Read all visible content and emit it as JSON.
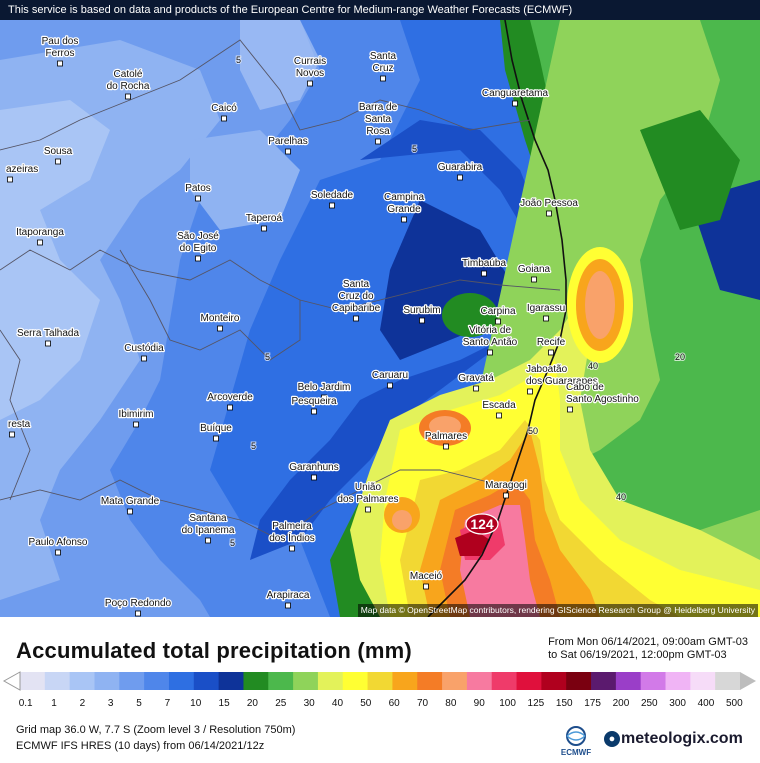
{
  "notice": "This service is based on data and products of the European Centre for Medium-range Weather Forecasts (ECMWF)",
  "attribution": "Map data © OpenStreetMap contributors, rendering GIScience Research Group @ Heidelberg University",
  "title": "Accumulated total precipitation (mm)",
  "from_line": "From Mon 06/14/2021, 09:00am GMT-03",
  "to_line": "to Sat 06/19/2021, 12:00pm GMT-03",
  "grid_info": "Grid map 36.0 W, 7.7 S (Zoom level 3 / Resolution 750m)",
  "model_info": "ECMWF IFS HRES (10 days) from 06/14/2021/12z",
  "ecmwf_label": "ECMWF",
  "brand": "meteologix.com",
  "max_marker": "124",
  "legend": {
    "values": [
      "0.1",
      "1",
      "2",
      "3",
      "5",
      "7",
      "10",
      "15",
      "20",
      "25",
      "30",
      "40",
      "50",
      "60",
      "70",
      "80",
      "90",
      "100",
      "125",
      "150",
      "175",
      "200",
      "250",
      "300",
      "400",
      "500"
    ],
    "colors": [
      "#e3e3f3",
      "#c8d6f5",
      "#a9c5f5",
      "#8fb3f2",
      "#6f9cee",
      "#4f86ea",
      "#2e6fe2",
      "#1a4fc7",
      "#0e3399",
      "#228b22",
      "#4cb84c",
      "#8fd35a",
      "#e3f25a",
      "#ffff33",
      "#f2d833",
      "#f8a51c",
      "#f47c26",
      "#f9a26a",
      "#f77aa0",
      "#ef3b6a",
      "#e0103c",
      "#b0001e",
      "#7a0010",
      "#5b1a6e",
      "#9a3ec8",
      "#d27ae8",
      "#f0b4f5",
      "#f6dcf8",
      "#d7d7d7"
    ]
  },
  "cities": [
    {
      "name": "Pau dos",
      "name2": "Ferros"
    },
    {
      "name": "Catolé",
      "name2": "do Rocha"
    },
    {
      "name": "Currais",
      "name2": "Novos"
    },
    {
      "name": "Santa",
      "name2": "Cruz"
    },
    {
      "name": "Canguaretama"
    },
    {
      "name": "Caicó"
    },
    {
      "name": "Sousa"
    },
    {
      "name": "azeiras"
    },
    {
      "name": "Parelhas"
    },
    {
      "name": "Barra de",
      "name2": "Santa",
      "name3": "Rosa"
    },
    {
      "name": "Guarabira"
    },
    {
      "name": "Patos"
    },
    {
      "name": "Soledade"
    },
    {
      "name": "Campina",
      "name2": "Grande"
    },
    {
      "name": "João Pessoa"
    },
    {
      "name": "Taperoá"
    },
    {
      "name": "Itaporanga"
    },
    {
      "name": "São José",
      "name2": "do Egito"
    },
    {
      "name": "Timbaúba"
    },
    {
      "name": "Goiana"
    },
    {
      "name": "Serra Talhada"
    },
    {
      "name": "Monteiro"
    },
    {
      "name": "Santa",
      "name2": "Cruz do",
      "name3": "Capibaribe"
    },
    {
      "name": "Surubim"
    },
    {
      "name": "Carpina"
    },
    {
      "name": "Igarassu"
    },
    {
      "name": "Custódia"
    },
    {
      "name": "Vitória de",
      "name2": "Santo Antão"
    },
    {
      "name": "Recife"
    },
    {
      "name": "Caruaru"
    },
    {
      "name": "Gravatá"
    },
    {
      "name": "Jaboatão",
      "name2": "dos Guararapes"
    },
    {
      "name": "Belo Jardim"
    },
    {
      "name": "Pesqueira"
    },
    {
      "name": "Arcoverde"
    },
    {
      "name": "Escada"
    },
    {
      "name": "Cabo de",
      "name2": "Santo Agostinho"
    },
    {
      "name": "Ibimirim"
    },
    {
      "name": "resta"
    },
    {
      "name": "Buíque"
    },
    {
      "name": "Palmares"
    },
    {
      "name": "Garanhuns"
    },
    {
      "name": "Maragogi"
    },
    {
      "name": "Mata Grande"
    },
    {
      "name": "União",
      "name2": "dos Palmares"
    },
    {
      "name": "Santana",
      "name2": "do Ipanema"
    },
    {
      "name": "Palmeira",
      "name2": "dos Índios"
    },
    {
      "name": "Paulo Afonso"
    },
    {
      "name": "Maceió"
    },
    {
      "name": "Arapiraca"
    },
    {
      "name": "Poço Redondo"
    }
  ],
  "contour_labels": [
    "5",
    "5",
    "5",
    "5",
    "5",
    "40",
    "20",
    "50",
    "40"
  ]
}
